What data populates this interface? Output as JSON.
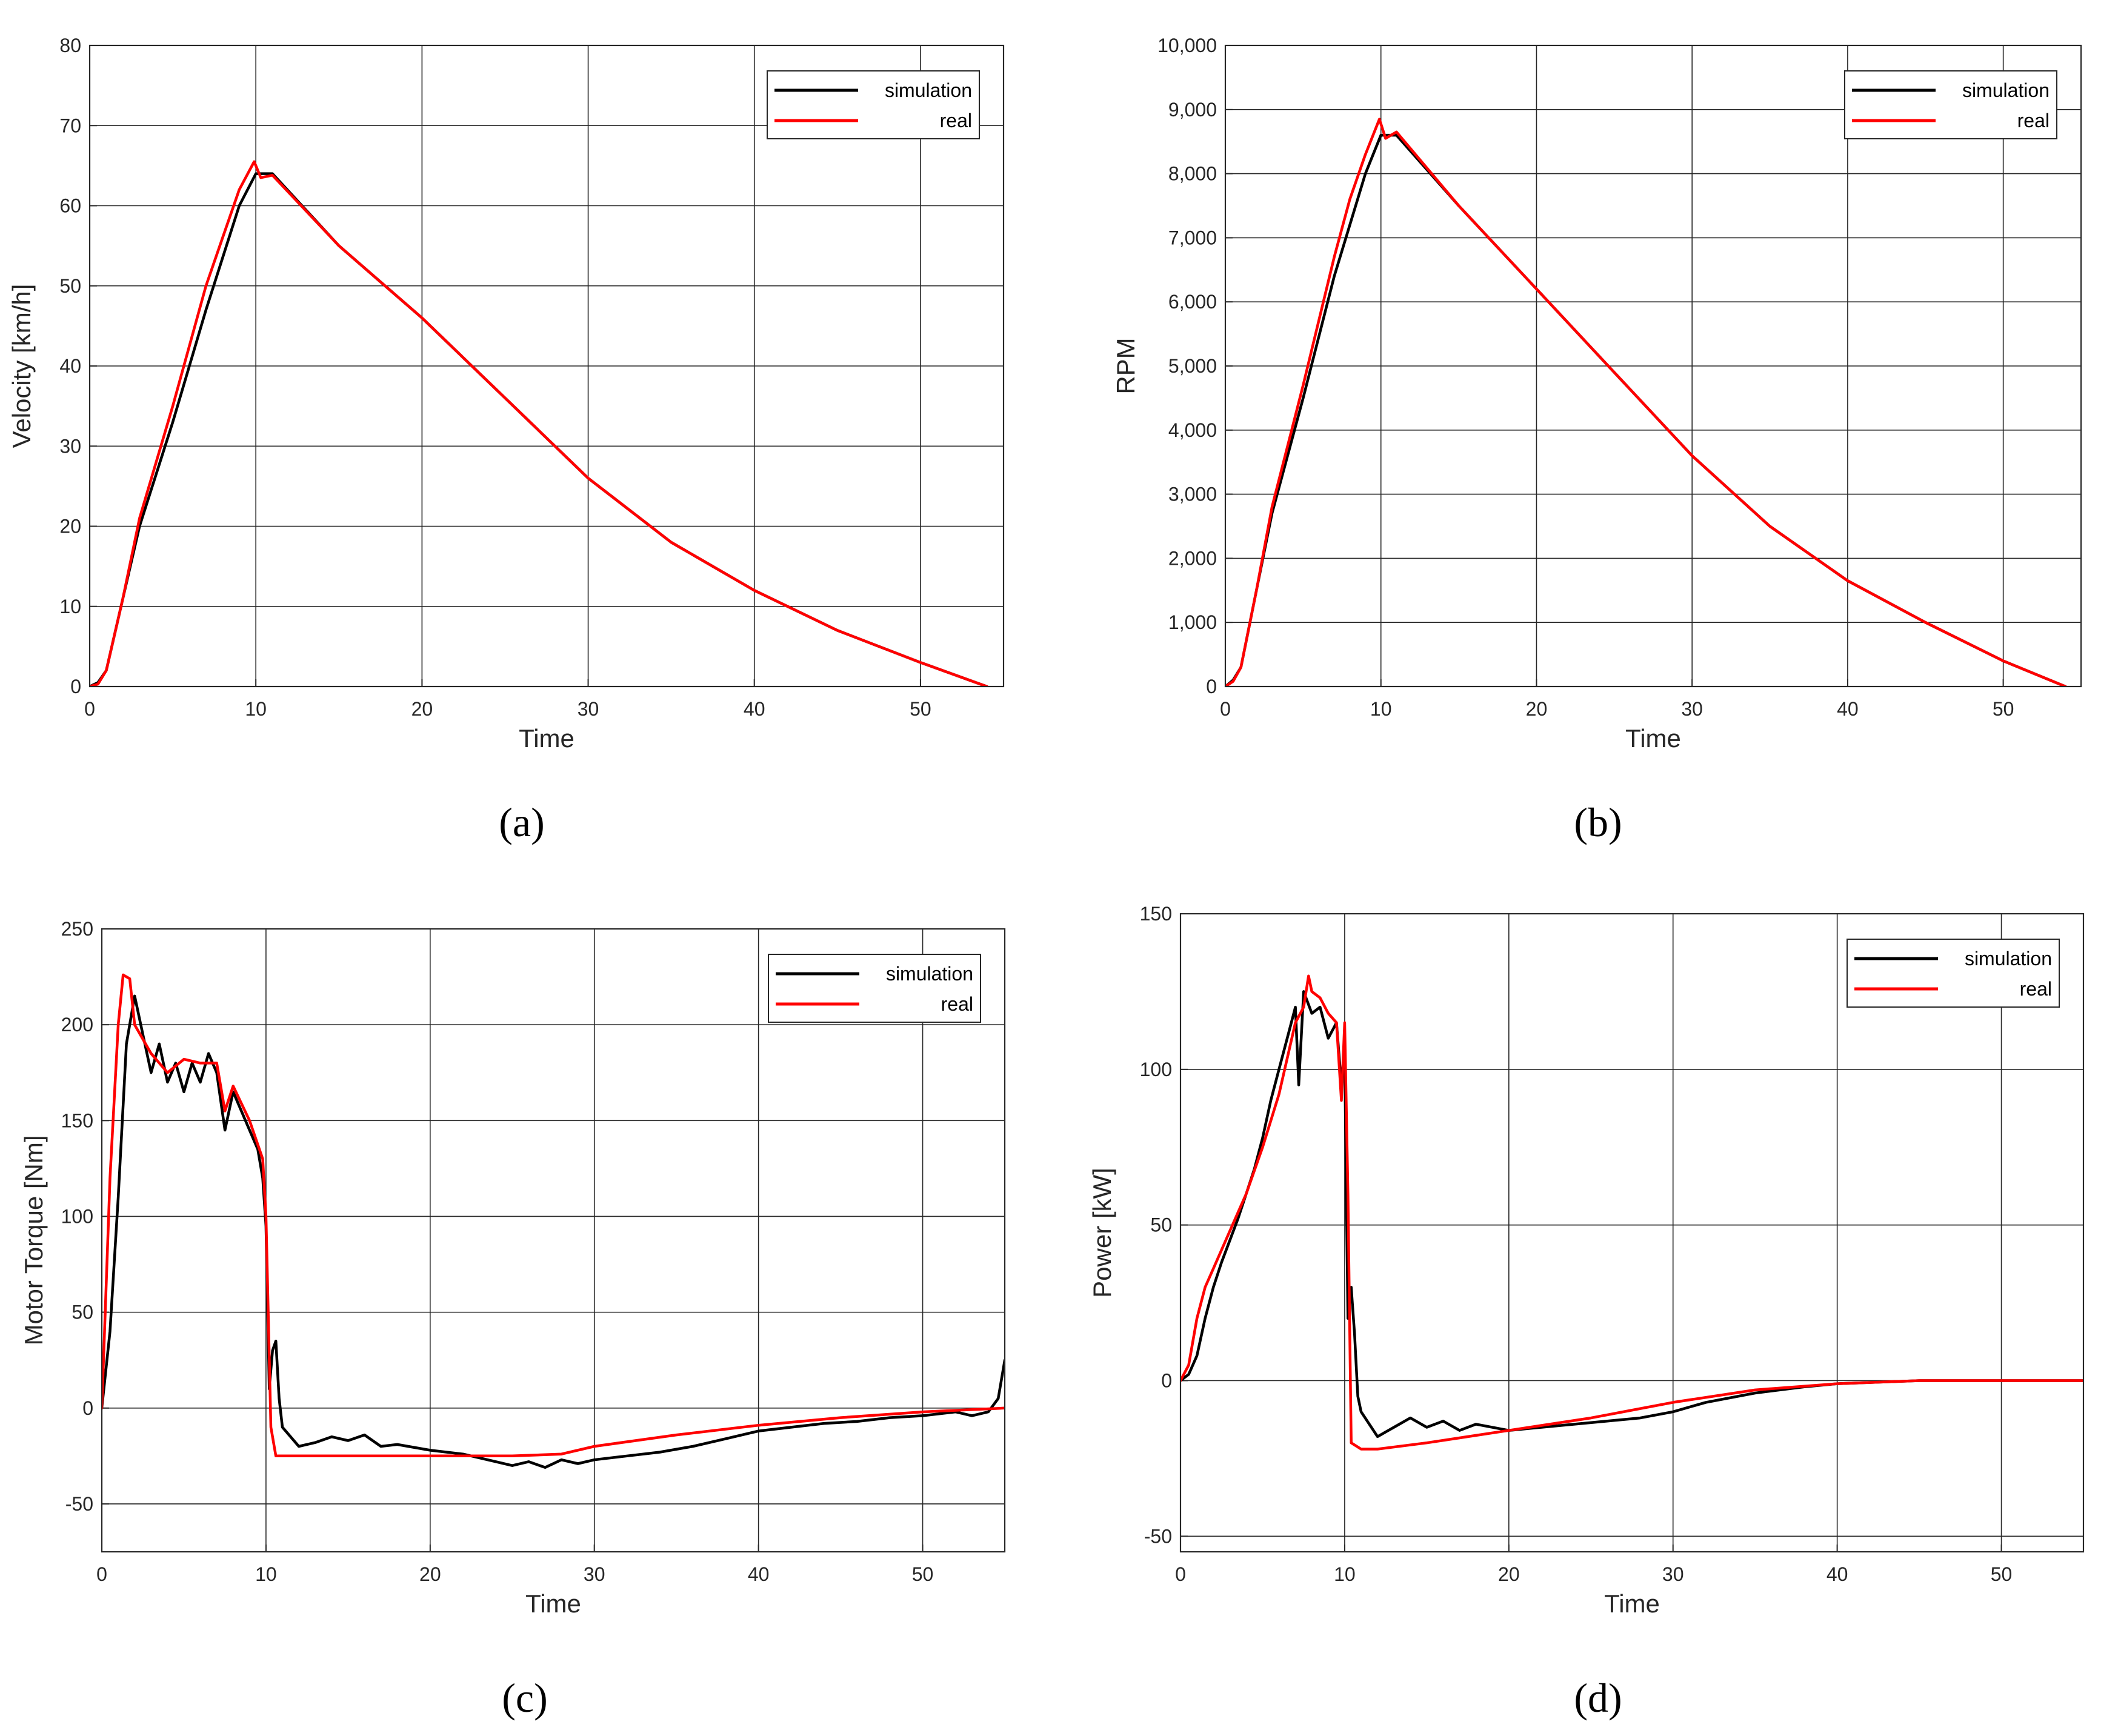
{
  "legend_labels": {
    "simulation": "simulation",
    "real": "real"
  },
  "colors": {
    "simulation": "#000000",
    "real": "#ff0000",
    "grid": "#262626",
    "axis": "#262626"
  },
  "chart_data": [
    {
      "panel_label": "(a)",
      "type": "line",
      "xlabel": "Time",
      "ylabel": "Velocity [km/h]",
      "xlim": [
        0,
        55
      ],
      "ylim": [
        0,
        80
      ],
      "xticks": [
        0,
        10,
        20,
        30,
        40,
        50
      ],
      "xtick_labels": [
        "0",
        "10",
        "20",
        "30",
        "40",
        "50"
      ],
      "yticks": [
        0,
        10,
        20,
        30,
        40,
        50,
        60,
        70,
        80
      ],
      "ytick_labels": [
        "0",
        "10",
        "20",
        "30",
        "40",
        "50",
        "60",
        "70",
        "80"
      ],
      "grid": true,
      "legend_position": "top-right",
      "series": [
        {
          "name": "simulation",
          "color": "#000000",
          "x": [
            0,
            0.5,
            1,
            2,
            3,
            5,
            7,
            9,
            10,
            11,
            15,
            20,
            25,
            30,
            35,
            40,
            45,
            50,
            54
          ],
          "y": [
            0,
            0.5,
            2,
            11,
            20,
            33,
            47,
            60,
            64,
            64,
            55,
            46,
            36,
            26,
            18,
            12,
            7,
            3,
            0
          ]
        },
        {
          "name": "real",
          "color": "#ff0000",
          "x": [
            0,
            0.5,
            1,
            2,
            3,
            5,
            7,
            8,
            9,
            9.9,
            10.3,
            11,
            15,
            20,
            25,
            30,
            35,
            40,
            45,
            50,
            54
          ],
          "y": [
            0,
            0.3,
            2,
            11,
            21,
            35,
            50,
            56,
            62,
            65.5,
            63.5,
            63.8,
            55,
            46,
            36,
            26,
            18,
            12,
            7,
            3,
            0
          ]
        }
      ]
    },
    {
      "panel_label": "(b)",
      "type": "line",
      "xlabel": "Time",
      "ylabel": "RPM",
      "xlim": [
        0,
        55
      ],
      "ylim": [
        0,
        10000
      ],
      "xticks": [
        0,
        10,
        20,
        30,
        40,
        50
      ],
      "xtick_labels": [
        "0",
        "10",
        "20",
        "30",
        "40",
        "50"
      ],
      "yticks": [
        0,
        1000,
        2000,
        3000,
        4000,
        5000,
        6000,
        7000,
        8000,
        9000,
        10000
      ],
      "ytick_labels": [
        "0",
        "1,000",
        "2,000",
        "3,000",
        "4,000",
        "5,000",
        "6,000",
        "7,000",
        "8,000",
        "9,000",
        "10,000"
      ],
      "grid": true,
      "legend_position": "top-right",
      "series": [
        {
          "name": "simulation",
          "color": "#000000",
          "x": [
            0,
            0.5,
            1,
            2,
            3,
            5,
            7,
            9,
            10,
            11,
            15,
            20,
            25,
            30,
            35,
            40,
            45,
            50,
            54
          ],
          "y": [
            0,
            100,
            300,
            1500,
            2700,
            4500,
            6400,
            8000,
            8600,
            8600,
            7500,
            6200,
            4900,
            3600,
            2500,
            1650,
            1000,
            400,
            0
          ]
        },
        {
          "name": "real",
          "color": "#ff0000",
          "x": [
            0,
            0.5,
            1,
            2,
            3,
            5,
            7,
            8,
            9,
            9.9,
            10.3,
            11,
            15,
            20,
            25,
            30,
            35,
            40,
            45,
            50,
            54
          ],
          "y": [
            0,
            80,
            300,
            1500,
            2800,
            4700,
            6700,
            7600,
            8300,
            8850,
            8550,
            8650,
            7500,
            6200,
            4900,
            3600,
            2500,
            1650,
            1000,
            400,
            0
          ]
        }
      ]
    },
    {
      "panel_label": "(c)",
      "type": "line",
      "xlabel": "Time",
      "ylabel": "Motor Torque [Nm]",
      "xlim": [
        0,
        55
      ],
      "ylim": [
        -75,
        250
      ],
      "xticks": [
        0,
        10,
        20,
        30,
        40,
        50
      ],
      "xtick_labels": [
        "0",
        "10",
        "20",
        "30",
        "40",
        "50"
      ],
      "yticks": [
        -50,
        0,
        50,
        100,
        150,
        200,
        250
      ],
      "ytick_labels": [
        "-50",
        "0",
        "50",
        "100",
        "150",
        "200",
        "250"
      ],
      "grid": true,
      "legend_position": "top-right",
      "series": [
        {
          "name": "simulation",
          "color": "#000000",
          "x": [
            0,
            0.5,
            1,
            1.5,
            2,
            2.5,
            3,
            3.5,
            4,
            4.5,
            5,
            5.5,
            6,
            6.5,
            7,
            7.5,
            8,
            8.5,
            9,
            9.5,
            9.8,
            10.0,
            10.2,
            10.4,
            10.6,
            10.8,
            11,
            12,
            13,
            14,
            15,
            16,
            17,
            18,
            20,
            22,
            24,
            25,
            26,
            27,
            28,
            29,
            30,
            32,
            34,
            36,
            38,
            40,
            42,
            44,
            46,
            48,
            50,
            52,
            53,
            54,
            54.6,
            55
          ],
          "y": [
            0,
            40,
            110,
            190,
            215,
            195,
            175,
            190,
            170,
            180,
            165,
            180,
            170,
            185,
            175,
            145,
            165,
            155,
            145,
            135,
            120,
            95,
            10,
            30,
            35,
            5,
            -10,
            -20,
            -18,
            -15,
            -17,
            -14,
            -20,
            -19,
            -22,
            -24,
            -28,
            -30,
            -28,
            -31,
            -27,
            -29,
            -27,
            -25,
            -23,
            -20,
            -16,
            -12,
            -10,
            -8,
            -7,
            -5,
            -4,
            -2,
            -4,
            -2,
            5,
            25
          ]
        },
        {
          "name": "real",
          "color": "#ff0000",
          "x": [
            0,
            0.5,
            1,
            1.3,
            1.7,
            2,
            3,
            4,
            5,
            6,
            7,
            7.5,
            8,
            9,
            9.8,
            10.0,
            10.3,
            10.6,
            12,
            15,
            20,
            25,
            28,
            30,
            35,
            40,
            45,
            50,
            55
          ],
          "y": [
            0,
            120,
            200,
            226,
            224,
            200,
            185,
            175,
            182,
            180,
            180,
            155,
            168,
            150,
            130,
            100,
            -10,
            -25,
            -25,
            -25,
            -25,
            -25,
            -24,
            -20,
            -14,
            -9,
            -5,
            -2,
            0
          ]
        }
      ]
    },
    {
      "panel_label": "(d)",
      "type": "line",
      "xlabel": "Time",
      "ylabel": "Power [kW]",
      "xlim": [
        0,
        55
      ],
      "ylim": [
        -55,
        150
      ],
      "xticks": [
        0,
        10,
        20,
        30,
        40,
        50
      ],
      "xtick_labels": [
        "0",
        "10",
        "20",
        "30",
        "40",
        "50"
      ],
      "yticks": [
        -50,
        0,
        50,
        100,
        150
      ],
      "ytick_labels": [
        "-50",
        "0",
        "50",
        "100",
        "150"
      ],
      "grid": true,
      "legend_position": "top-right",
      "series": [
        {
          "name": "simulation",
          "color": "#000000",
          "x": [
            0,
            0.5,
            1,
            1.5,
            2,
            2.5,
            3,
            3.5,
            4,
            4.5,
            5,
            5.5,
            6,
            6.5,
            7,
            7.2,
            7.5,
            8,
            8.5,
            9,
            9.5,
            9.8,
            10.0,
            10.2,
            10.4,
            10.6,
            10.8,
            11,
            12,
            13,
            14,
            15,
            16,
            17,
            18,
            20,
            22,
            24,
            26,
            28,
            30,
            32,
            35,
            38,
            40,
            45,
            50,
            55
          ],
          "y": [
            0,
            2,
            8,
            20,
            30,
            38,
            45,
            52,
            60,
            68,
            78,
            90,
            100,
            110,
            120,
            95,
            125,
            118,
            120,
            110,
            115,
            95,
            105,
            20,
            30,
            15,
            -5,
            -10,
            -18,
            -15,
            -12,
            -15,
            -13,
            -16,
            -14,
            -16,
            -15,
            -14,
            -13,
            -12,
            -10,
            -7,
            -4,
            -2,
            -1,
            0,
            0,
            0
          ]
        },
        {
          "name": "real",
          "color": "#ff0000",
          "x": [
            0,
            0.5,
            1,
            1.5,
            2,
            3,
            4,
            5,
            6,
            7,
            7.5,
            7.8,
            8,
            8.5,
            9,
            9.5,
            9.8,
            10.0,
            10.2,
            10.4,
            11,
            12,
            15,
            20,
            25,
            30,
            35,
            40,
            45,
            50,
            55
          ],
          "y": [
            0,
            5,
            20,
            30,
            36,
            48,
            60,
            75,
            92,
            115,
            120,
            130,
            125,
            123,
            118,
            115,
            90,
            115,
            60,
            -20,
            -22,
            -22,
            -20,
            -16,
            -12,
            -7,
            -3,
            -1,
            0,
            0,
            0
          ]
        }
      ]
    }
  ]
}
